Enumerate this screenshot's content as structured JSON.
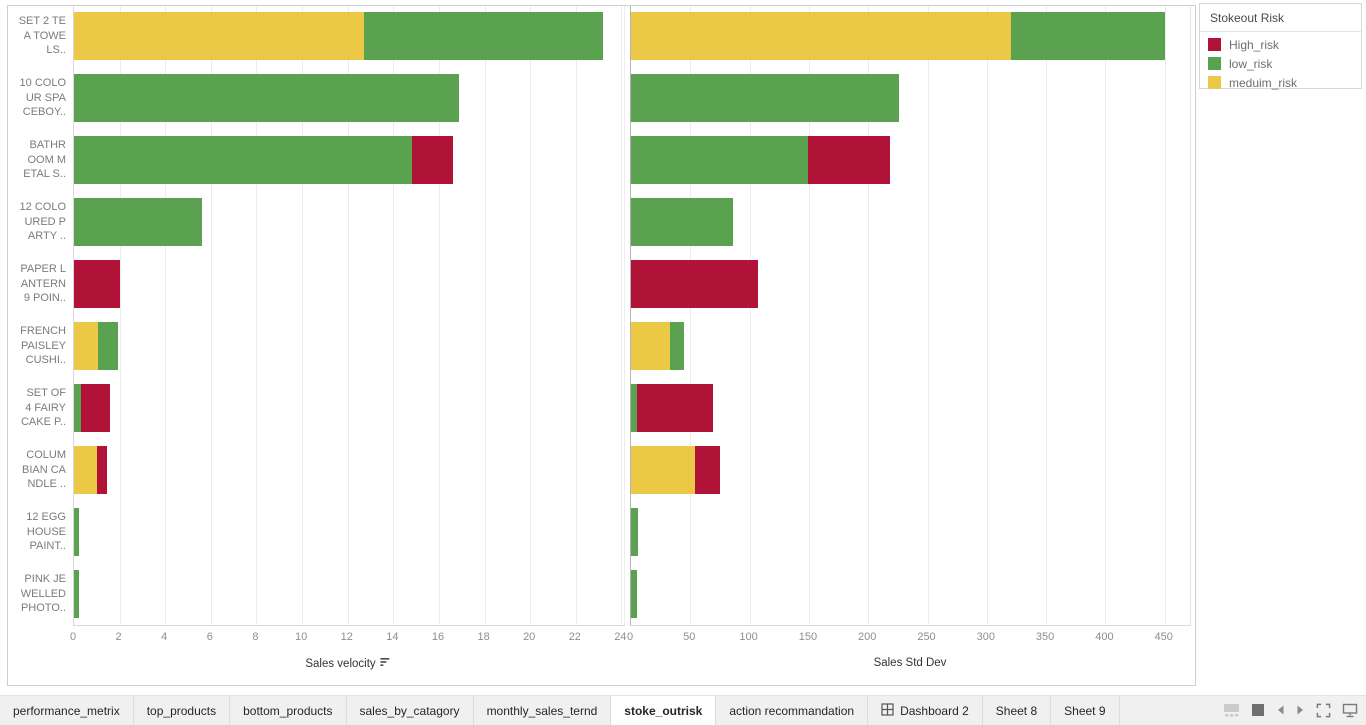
{
  "legend": {
    "title": "Stokeout Risk",
    "items": [
      {
        "label": "High_risk",
        "color": "#B11237"
      },
      {
        "label": "low_risk",
        "color": "#5AA24F"
      },
      {
        "label": "meduim_risk",
        "color": "#EBC846"
      }
    ]
  },
  "categories": [
    {
      "label": "SET 2 TEA TOWELS..",
      "display_lines": [
        "SET 2 TE",
        "A TOWE",
        "LS.."
      ]
    },
    {
      "label": "10 COLOUR SPACEBOY..",
      "display_lines": [
        "10 COLO",
        "UR SPA",
        "CEBOY.."
      ]
    },
    {
      "label": "BATHROOM METAL S..",
      "display_lines": [
        "BATHR",
        "OOM M",
        "ETAL S.."
      ]
    },
    {
      "label": "12 COLOURED PARTY ..",
      "display_lines": [
        "12 COLO",
        "URED P",
        "ARTY .."
      ]
    },
    {
      "label": "PAPER LANTERN 9 POIN..",
      "display_lines": [
        "PAPER L",
        "ANTERN",
        "9 POIN.."
      ]
    },
    {
      "label": "FRENCH PAISLEY CUSHI..",
      "display_lines": [
        "FRENCH",
        "PAISLEY",
        "CUSHI.."
      ]
    },
    {
      "label": "SET OF 4 FAIRY CAKE P..",
      "display_lines": [
        "SET OF",
        "4 FAIRY",
        "CAKE P.."
      ]
    },
    {
      "label": "COLUMBIAN CANDLE ..",
      "display_lines": [
        "COLUM",
        "BIAN CA",
        "NDLE .."
      ]
    },
    {
      "label": "12 EGG HOUSE PAINT..",
      "display_lines": [
        "12 EGG",
        "HOUSE",
        "PAINT.."
      ]
    },
    {
      "label": "PINK JEWELLED PHOTO..",
      "display_lines": [
        "PINK JE",
        "WELLED",
        "PHOTO.."
      ]
    }
  ],
  "chart_data": [
    {
      "type": "bar",
      "orientation": "horizontal",
      "stacked": true,
      "xlabel": "Sales velocity",
      "sorted_descending": true,
      "xlim": [
        0,
        24.2
      ],
      "xticks": [
        0,
        2,
        4,
        6,
        8,
        10,
        12,
        14,
        16,
        18,
        20,
        22,
        24
      ],
      "grid": true,
      "categories": [
        "SET 2 TEA TOWELS..",
        "10 COLOUR SPACEBOY..",
        "BATHROOM METAL S..",
        "12 COLOURED PARTY ..",
        "PAPER LANTERN 9 POIN..",
        "FRENCH PAISLEY CUSHI..",
        "SET OF 4 FAIRY CAKE P..",
        "COLUMBIAN CANDLE ..",
        "12 EGG HOUSE PAINT..",
        "PINK JEWELLED PHOTO.."
      ],
      "series": [
        {
          "name": "meduim_risk",
          "color": "#EBC846",
          "values": [
            12.7,
            0,
            0,
            0,
            0,
            1.05,
            0,
            1.0,
            0,
            0
          ]
        },
        {
          "name": "low_risk",
          "color": "#5AA24F",
          "values": [
            10.5,
            16.9,
            14.8,
            5.6,
            0,
            0.9,
            0.3,
            0,
            0.2,
            0.2
          ]
        },
        {
          "name": "High_risk",
          "color": "#B11237",
          "values": [
            0,
            0,
            1.8,
            0,
            2.0,
            0,
            1.3,
            0.45,
            0,
            0
          ]
        }
      ]
    },
    {
      "type": "bar",
      "orientation": "horizontal",
      "stacked": true,
      "xlabel": "Sales Std Dev",
      "xlim": [
        0,
        473
      ],
      "xticks": [
        0,
        50,
        100,
        150,
        200,
        250,
        300,
        350,
        400,
        450
      ],
      "grid": true,
      "categories": [
        "SET 2 TEA TOWELS..",
        "10 COLOUR SPACEBOY..",
        "BATHROOM METAL S..",
        "12 COLOURED PARTY ..",
        "PAPER LANTERN 9 POIN..",
        "FRENCH PAISLEY CUSHI..",
        "SET OF 4 FAIRY CAKE P..",
        "COLUMBIAN CANDLE ..",
        "12 EGG HOUSE PAINT..",
        "PINK JEWELLED PHOTO.."
      ],
      "series": [
        {
          "name": "meduim_risk",
          "color": "#EBC846",
          "values": [
            320,
            0,
            0,
            0,
            0,
            33,
            0,
            54,
            0,
            0
          ]
        },
        {
          "name": "low_risk",
          "color": "#5AA24F",
          "values": [
            130,
            226,
            149,
            86,
            0,
            12,
            5,
            0,
            6,
            5
          ]
        },
        {
          "name": "High_risk",
          "color": "#B11237",
          "values": [
            0,
            0,
            69,
            0,
            107,
            0,
            64,
            21,
            0,
            0
          ]
        }
      ]
    }
  ],
  "tabs": [
    {
      "label": "performance_metrix",
      "active": false,
      "icon": null
    },
    {
      "label": "top_products",
      "active": false,
      "icon": null
    },
    {
      "label": "bottom_products",
      "active": false,
      "icon": null
    },
    {
      "label": "sales_by_catagory",
      "active": false,
      "icon": null
    },
    {
      "label": "monthly_sales_ternd",
      "active": false,
      "icon": null
    },
    {
      "label": "stoke_outrisk",
      "active": true,
      "icon": null
    },
    {
      "label": "action recommandation",
      "active": false,
      "icon": null
    },
    {
      "label": "Dashboard 2",
      "active": false,
      "icon": "dashboard-grid-icon"
    },
    {
      "label": "Sheet 8",
      "active": false,
      "icon": null
    },
    {
      "label": "Sheet 9",
      "active": false,
      "icon": null
    }
  ],
  "status_bar": {
    "icons": [
      "sheet-thumbnails-icon",
      "show-tabs-icon",
      "previous-sheet-icon",
      "next-sheet-icon",
      "fullscreen-icon",
      "presentation-mode-icon"
    ]
  }
}
